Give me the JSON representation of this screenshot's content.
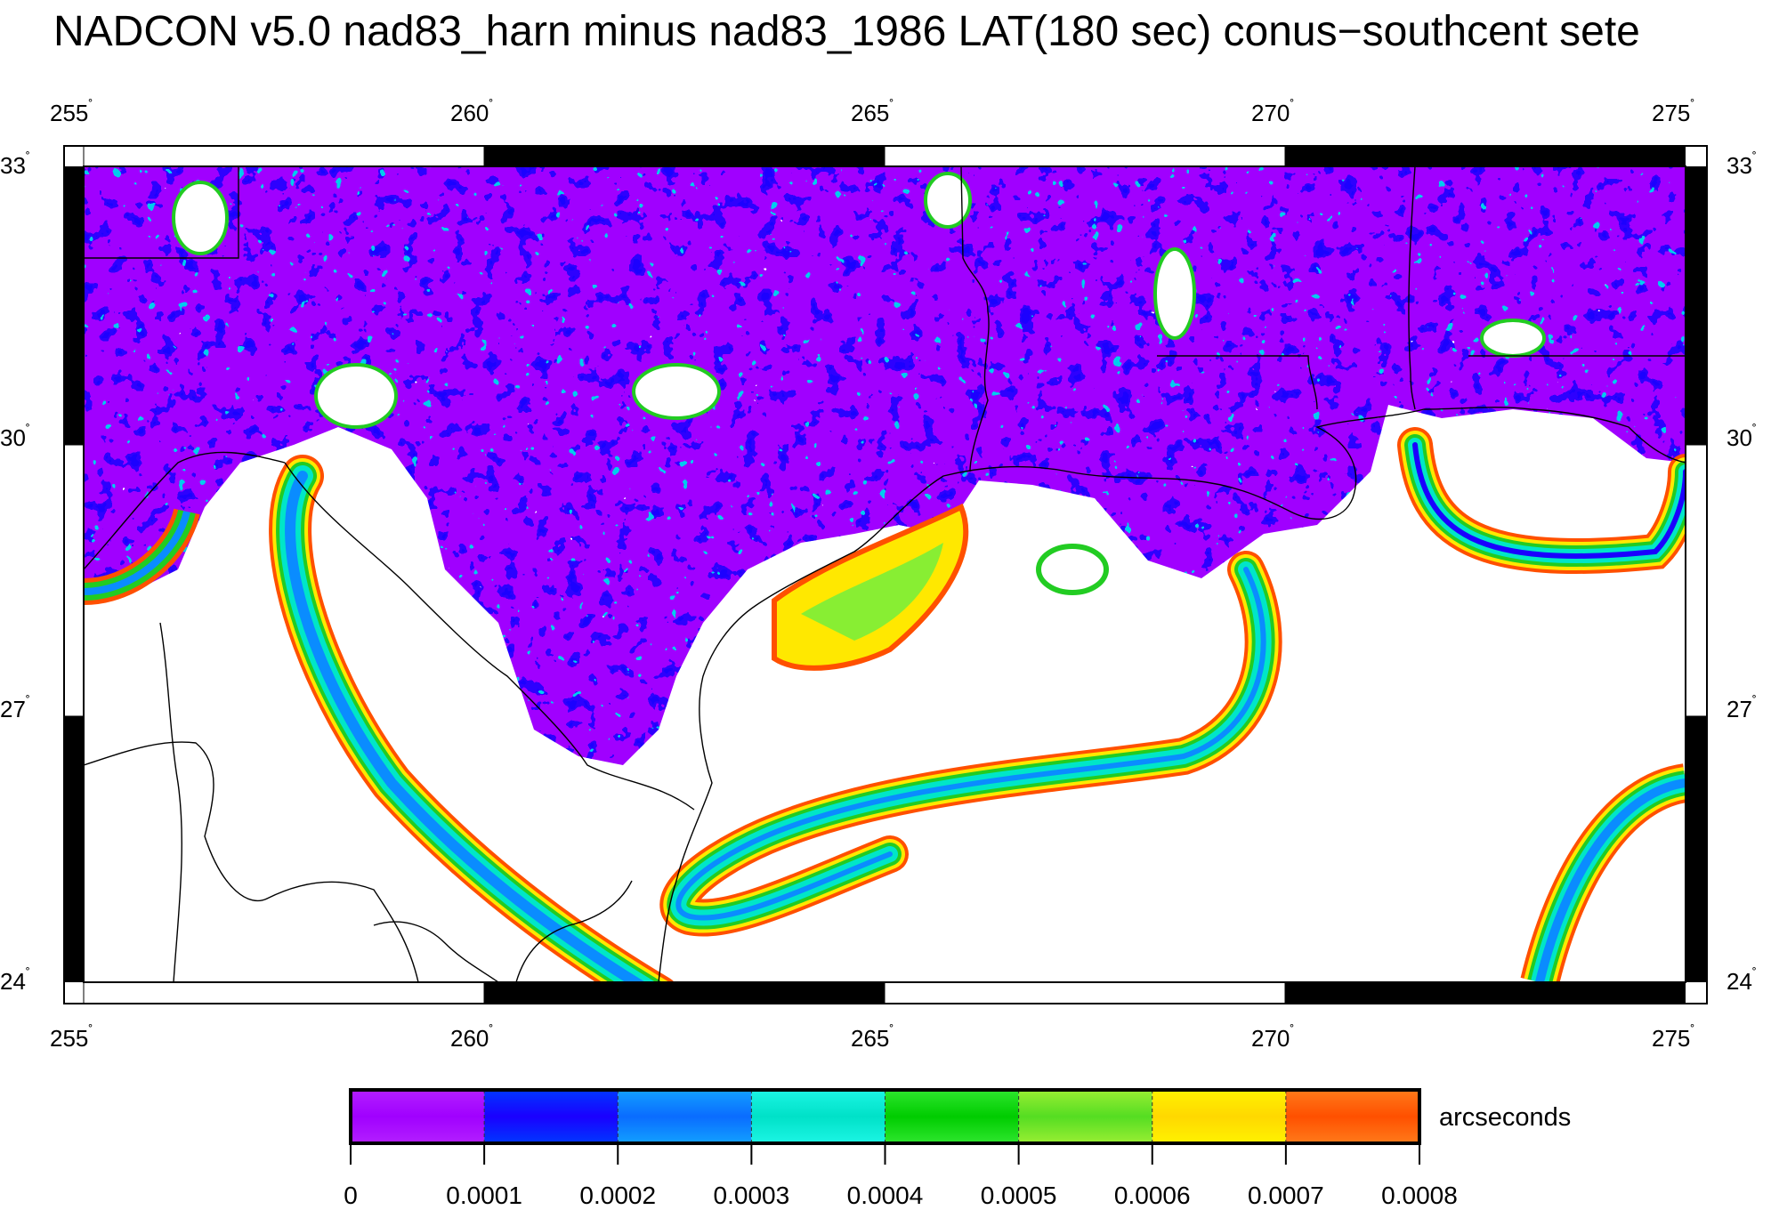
{
  "title": "NADCON v5.0 nad83_harn minus nad83_1986 LAT(180 sec) conus−southcent sete",
  "axes": {
    "lon_ticks": [
      {
        "value": 255,
        "label": "255"
      },
      {
        "value": 260,
        "label": "260"
      },
      {
        "value": 265,
        "label": "265"
      },
      {
        "value": 270,
        "label": "270"
      },
      {
        "value": 275,
        "label": "275"
      }
    ],
    "lat_ticks": [
      {
        "value": 33,
        "label": "33"
      },
      {
        "value": 30,
        "label": "30"
      },
      {
        "value": 27,
        "label": "27"
      },
      {
        "value": 24,
        "label": "24"
      }
    ],
    "degree_symbol": "˚",
    "lon_range": [
      255,
      275
    ],
    "lat_range": [
      24,
      33
    ]
  },
  "colorbar": {
    "unit": "arcseconds",
    "boundaries": [
      "0",
      "0.0001",
      "0.0002",
      "0.0003",
      "0.0004",
      "0.0005",
      "0.0006",
      "0.0007",
      "0.0008"
    ],
    "colors": [
      [
        "#a000ff",
        "#b31fff"
      ],
      [
        "#1a00ff",
        "#0037ff"
      ],
      [
        "#0a6cff",
        "#12a0ff"
      ],
      [
        "#00e1c8",
        "#1cf5e4"
      ],
      [
        "#00cc00",
        "#2ee62e"
      ],
      [
        "#55dd22",
        "#99ee33"
      ],
      [
        "#ffd800",
        "#fff200"
      ],
      [
        "#ff5000",
        "#ff7a1a"
      ]
    ]
  },
  "map_colors": {
    "background": "#ffffff",
    "magnitude_low": "#a000ff",
    "magnitude_mid_low": "#1a00ff",
    "magnitude_mid": "#0a8cff",
    "magnitude_cyan": "#00e6c8",
    "magnitude_green": "#22cc22",
    "magnitude_yellow": "#ffe800",
    "magnitude_high": "#ff5000",
    "coastline": "#000000"
  }
}
